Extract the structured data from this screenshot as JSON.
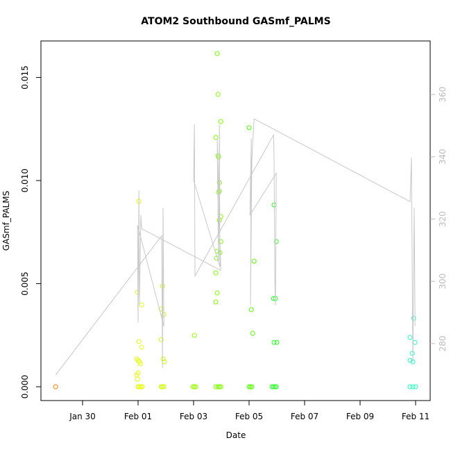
{
  "chart_data": {
    "type": "scatter",
    "title": "ATOM2 Southbound GASmf_PALMS",
    "xlabel": "Date",
    "ylabel": "GASmf_PALMS",
    "xlim": [
      28.5,
      42.525
    ],
    "xticks": [
      {
        "value": 30,
        "label": "Jan 30"
      },
      {
        "value": 32,
        "label": "Feb 01"
      },
      {
        "value": 34,
        "label": "Feb 03"
      },
      {
        "value": 36,
        "label": "Feb 05"
      },
      {
        "value": 38,
        "label": "Feb 07"
      },
      {
        "value": 40,
        "label": "Feb 09"
      },
      {
        "value": 42,
        "label": "Feb 11"
      }
    ],
    "ylim": [
      -0.00067,
      0.01677
    ],
    "yticks": [
      {
        "value": 0,
        "label": "0.000"
      },
      0.005,
      {
        "value": 0.01,
        "label": "0.010"
      },
      0.015
    ],
    "y2lim": [
      261.7,
      377.2
    ],
    "y2ticks": [
      280,
      300,
      320,
      340,
      360
    ],
    "series": [
      {
        "color": "#ff8000",
        "x": [
          29.03
        ],
        "values": [
          0
        ]
      },
      {
        "color": "#e6ff00",
        "x": [
          32.03,
          31.98,
          32.13,
          32.03,
          32.13,
          31.95,
          32.0,
          32.05,
          32.08,
          32.0,
          31.95,
          31.98,
          32.0,
          32.05,
          32.1,
          32.15
        ],
        "values": [
          0.009,
          0.00458,
          0.00397,
          0.00219,
          0.00192,
          0.00135,
          0.00128,
          0.00121,
          0.00111,
          0.00067,
          0.00057,
          0.00037,
          0,
          0,
          0,
          0
        ]
      },
      {
        "color": "#ccff00",
        "x": [
          32.88,
          32.83,
          32.93,
          32.83,
          32.9,
          32.95,
          32.83,
          32.88,
          32.93
        ],
        "values": [
          0.00488,
          0.00377,
          0.0035,
          0.00229,
          0.00135,
          0.00121,
          0,
          0,
          0
        ]
      },
      {
        "color": "#99ff00",
        "x": [
          34.03,
          33.98,
          34.03,
          34.08
        ],
        "values": [
          0.00249,
          0,
          0,
          0
        ]
      },
      {
        "color": "#80ff00",
        "x": [
          34.85,
          34.88,
          34.98,
          34.8,
          34.88,
          34.9,
          34.93,
          34.93,
          34.9,
          34.98,
          34.93,
          34.98,
          34.85,
          34.95,
          34.83,
          34.8,
          34.85,
          34.8,
          34.8,
          34.88,
          34.93,
          34.98
        ],
        "values": [
          0.01616,
          0.01418,
          0.01286,
          0.01209,
          0.01121,
          0.01114,
          0.0099,
          0.0095,
          0.00943,
          0.00825,
          0.00808,
          0.00704,
          0.00657,
          0.0065,
          0.00623,
          0.00552,
          0.00455,
          0.00411,
          0,
          0,
          0,
          0
        ]
      },
      {
        "color": "#55ff00",
        "x": [
          36.0,
          36.08,
          36.18,
          36.13,
          36.0,
          36.05,
          36.1
        ],
        "values": [
          0.01256,
          0.00374,
          0.00609,
          0.00259,
          0,
          0,
          0
        ]
      },
      {
        "color": "#2bff2b",
        "x": [
          36.9,
          36.98,
          36.88,
          36.95,
          36.9,
          37.0,
          36.83,
          36.88,
          36.93,
          36.98
        ],
        "values": [
          0.00882,
          0.00704,
          0.00428,
          0.00428,
          0.00215,
          0.00215,
          0,
          0,
          0,
          0
        ]
      },
      {
        "color": "#2bffc0",
        "x": [
          41.93,
          41.8,
          41.98,
          41.88,
          41.8,
          41.9,
          41.8,
          41.9,
          42.0
        ],
        "values": [
          0.00333,
          0.00239,
          0.00215,
          0.00162,
          0.00128,
          0.00121,
          0,
          0,
          0
        ]
      },
      {
        "type": "line",
        "axis": "y2",
        "color": "#c8c8c8",
        "x": [
          29.03,
          32.85,
          32.88,
          32.9,
          32.93,
          31.98,
          32.0,
          32.03,
          32.05,
          32.1,
          32.13,
          34.98,
          34.85,
          34.9,
          34.93,
          34.95,
          34.0,
          34.03,
          34.05,
          36.88,
          36.9,
          36.93,
          36.95,
          36.98,
          36.03,
          36.08,
          36.05,
          36.1,
          36.18,
          41.8,
          41.85,
          41.9,
          41.95,
          41.98
        ],
        "values": [
          269.9,
          314.6,
          272.2,
          323.6,
          285.6,
          318.0,
          286.7,
          329.2,
          292.3,
          321.3,
          316.9,
          303.5,
          345.9,
          305.7,
          350.4,
          304.6,
          332.5,
          350.4,
          301.7,
          347.0,
          339.2,
          299.0,
          292.3,
          334.7,
          321.3,
          345.9,
          292.3,
          339.2,
          352.2,
          325.6,
          339.7,
          274.4,
          323.6,
          285.6
        ]
      }
    ]
  }
}
